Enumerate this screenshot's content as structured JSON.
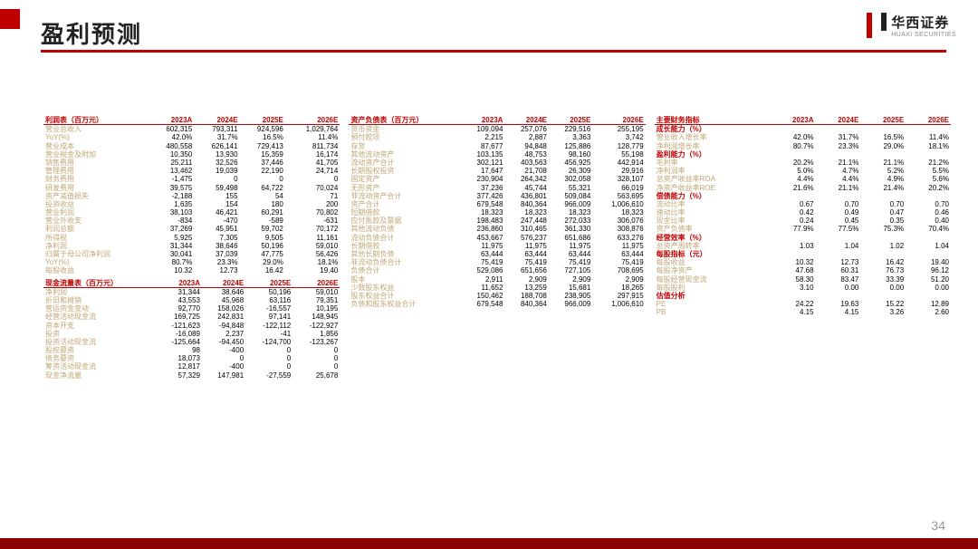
{
  "header": {
    "title": "盈利预测",
    "logo_cn": "华西证券",
    "logo_en": "HUAXI SECURITIES",
    "page_num": "34"
  },
  "cols": {
    "y1": "2023A",
    "y2": "2024E",
    "y3": "2025E",
    "y4": "2026E"
  },
  "t1_title": "利润表（百万元）",
  "t1": [
    {
      "l": "营业总收入",
      "a": "602,315",
      "b": "793,311",
      "c": "924,596",
      "d": "1,029,764"
    },
    {
      "l": "YoY(%)",
      "a": "42.0%",
      "b": "31.7%",
      "c": "16.5%",
      "d": "11.4%"
    },
    {
      "l": "营业成本",
      "a": "480,558",
      "b": "626,141",
      "c": "729,413",
      "d": "811,734"
    },
    {
      "l": "营业税金及附加",
      "a": "10,350",
      "b": "13,930",
      "c": "15,359",
      "d": "16,174"
    },
    {
      "l": "销售费用",
      "a": "25,211",
      "b": "32,526",
      "c": "37,446",
      "d": "41,705"
    },
    {
      "l": "管理费用",
      "a": "13,462",
      "b": "19,039",
      "c": "22,190",
      "d": "24,714"
    },
    {
      "l": "财务费用",
      "a": "-1,475",
      "b": "0",
      "c": "0",
      "d": "0"
    },
    {
      "l": "研发费用",
      "a": "39,575",
      "b": "59,498",
      "c": "64,722",
      "d": "70,024"
    },
    {
      "l": "资产减值损失",
      "a": "-2,188",
      "b": "155",
      "c": "54",
      "d": "71"
    },
    {
      "l": "投资收益",
      "a": "1,635",
      "b": "154",
      "c": "180",
      "d": "200"
    },
    {
      "l": "营业利润",
      "a": "38,103",
      "b": "46,421",
      "c": "60,291",
      "d": "70,802"
    },
    {
      "l": "营业外收支",
      "a": "-834",
      "b": "-470",
      "c": "-589",
      "d": "-631"
    },
    {
      "l": "利润总额",
      "a": "37,269",
      "b": "45,951",
      "c": "59,702",
      "d": "70,172"
    },
    {
      "l": "所得税",
      "a": "5,925",
      "b": "7,305",
      "c": "9,505",
      "d": "11,161"
    },
    {
      "l": "净利润",
      "a": "31,344",
      "b": "38,646",
      "c": "50,196",
      "d": "59,010"
    },
    {
      "l": "归属于母公司净利润",
      "a": "30,041",
      "b": "37,039",
      "c": "47,775",
      "d": "56,426"
    },
    {
      "l": "YoY(%)",
      "a": "80.7%",
      "b": "23.3%",
      "c": "29.0%",
      "d": "18.1%"
    },
    {
      "l": "每股收益",
      "a": "10.32",
      "b": "12.73",
      "c": "16.42",
      "d": "19.40"
    }
  ],
  "t2_title": "现金流量表（百万元）",
  "t2": [
    {
      "l": "净利润",
      "a": "31,344",
      "b": "38,646",
      "c": "50,196",
      "d": "59,010"
    },
    {
      "l": "折旧和摊销",
      "a": "43,553",
      "b": "45,968",
      "c": "63,116",
      "d": "79,351"
    },
    {
      "l": "营运资金变动",
      "a": "92,770",
      "b": "158,026",
      "c": "-16,557",
      "d": "10,195"
    },
    {
      "l": "经营活动现金流",
      "a": "169,725",
      "b": "242,831",
      "c": "97,141",
      "d": "148,945"
    },
    {
      "l": "资本开支",
      "a": "-121,623",
      "b": "-94,848",
      "c": "-122,112",
      "d": "-122,927"
    },
    {
      "l": "投资",
      "a": "-16,089",
      "b": "2,237",
      "c": "-41",
      "d": "1,856"
    },
    {
      "l": "投资活动现金流",
      "a": "-125,664",
      "b": "-94,450",
      "c": "-124,700",
      "d": "-123,267"
    },
    {
      "l": "股权募资",
      "a": "98",
      "b": "-400",
      "c": "0",
      "d": "0"
    },
    {
      "l": "债务募资",
      "a": "18,073",
      "b": "0",
      "c": "0",
      "d": "0"
    },
    {
      "l": "筹资活动现金流",
      "a": "12,817",
      "b": "-400",
      "c": "0",
      "d": "0"
    },
    {
      "l": "现金净流量",
      "a": "57,329",
      "b": "147,981",
      "c": "-27,559",
      "d": "25,678"
    }
  ],
  "t3_title": "资产负债表（百万元）",
  "t3": [
    {
      "l": "货币资金",
      "a": "109,094",
      "b": "257,076",
      "c": "229,516",
      "d": "255,195"
    },
    {
      "l": "预付款项",
      "a": "2,215",
      "b": "2,887",
      "c": "3,363",
      "d": "3,742"
    },
    {
      "l": "存货",
      "a": "87,677",
      "b": "94,848",
      "c": "125,886",
      "d": "128,779"
    },
    {
      "l": "其他流动资产",
      "a": "103,135",
      "b": "48,753",
      "c": "98,160",
      "d": "55,198"
    },
    {
      "l": "流动资产合计",
      "a": "302,121",
      "b": "403,563",
      "c": "456,925",
      "d": "442,914"
    },
    {
      "l": "长期股权投资",
      "a": "17,647",
      "b": "21,708",
      "c": "26,309",
      "d": "29,916"
    },
    {
      "l": "固定资产",
      "a": "230,904",
      "b": "264,342",
      "c": "302,058",
      "d": "328,107"
    },
    {
      "l": "无形资产",
      "a": "37,236",
      "b": "45,744",
      "c": "55,321",
      "d": "66,019"
    },
    {
      "l": "非流动资产合计",
      "a": "377,426",
      "b": "436,801",
      "c": "509,084",
      "d": "563,695"
    },
    {
      "l": "资产合计",
      "a": "679,548",
      "b": "840,364",
      "c": "966,009",
      "d": "1,006,610"
    },
    {
      "l": "短期借款",
      "a": "18,323",
      "b": "18,323",
      "c": "18,323",
      "d": "18,323"
    },
    {
      "l": "应付账款及票据",
      "a": "198,483",
      "b": "247,448",
      "c": "272,033",
      "d": "306,076"
    },
    {
      "l": "其他流动负债",
      "a": "236,860",
      "b": "310,465",
      "c": "361,330",
      "d": "308,876"
    },
    {
      "l": "流动负债合计",
      "a": "453,667",
      "b": "576,237",
      "c": "651,686",
      "d": "633,276"
    },
    {
      "l": "长期借款",
      "a": "11,975",
      "b": "11,975",
      "c": "11,975",
      "d": "11,975"
    },
    {
      "l": "其他长期负债",
      "a": "63,444",
      "b": "63,444",
      "c": "63,444",
      "d": "63,444"
    },
    {
      "l": "非流动负债合计",
      "a": "75,419",
      "b": "75,419",
      "c": "75,419",
      "d": "75,419"
    },
    {
      "l": "负债合计",
      "a": "529,086",
      "b": "651,656",
      "c": "727,105",
      "d": "708,695"
    },
    {
      "l": "股本",
      "a": "2,911",
      "b": "2,909",
      "c": "2,909",
      "d": "2,909"
    },
    {
      "l": "少数股东权益",
      "a": "11,652",
      "b": "13,259",
      "c": "15,681",
      "d": "18,265"
    },
    {
      "l": "股东权益合计",
      "a": "150,462",
      "b": "188,708",
      "c": "238,905",
      "d": "297,915"
    },
    {
      "l": "负债和股东权益合计",
      "a": "679,548",
      "b": "840,364",
      "c": "966,009",
      "d": "1,006,610"
    }
  ],
  "t4_title": "主要财务指标",
  "sections": [
    {
      "h": "成长能力（%）",
      "rows": [
        {
          "l": "营业收入增长率",
          "a": "42.0%",
          "b": "31.7%",
          "c": "16.5%",
          "d": "11.4%"
        },
        {
          "l": "净利润增长率",
          "a": "80.7%",
          "b": "23.3%",
          "c": "29.0%",
          "d": "18.1%"
        }
      ]
    },
    {
      "h": "盈利能力（%）",
      "rows": [
        {
          "l": "毛利率",
          "a": "20.2%",
          "b": "21.1%",
          "c": "21.1%",
          "d": "21.2%"
        },
        {
          "l": "净利润率",
          "a": "5.0%",
          "b": "4.7%",
          "c": "5.2%",
          "d": "5.5%"
        },
        {
          "l": "总资产收益率ROA",
          "a": "4.4%",
          "b": "4.4%",
          "c": "4.9%",
          "d": "5.6%"
        },
        {
          "l": "净资产收益率ROE",
          "a": "21.6%",
          "b": "21.1%",
          "c": "21.4%",
          "d": "20.2%"
        }
      ]
    },
    {
      "h": "偿债能力（%）",
      "rows": [
        {
          "l": "流动比率",
          "a": "0.67",
          "b": "0.70",
          "c": "0.70",
          "d": "0.70"
        },
        {
          "l": "速动比率",
          "a": "0.42",
          "b": "0.49",
          "c": "0.47",
          "d": "0.46"
        },
        {
          "l": "现金比率",
          "a": "0.24",
          "b": "0.45",
          "c": "0.35",
          "d": "0.40"
        },
        {
          "l": "资产负债率",
          "a": "77.9%",
          "b": "77.5%",
          "c": "75.3%",
          "d": "70.4%"
        }
      ]
    },
    {
      "h": "经营效率（%）",
      "rows": [
        {
          "l": "总资产周转率",
          "a": "1.03",
          "b": "1.04",
          "c": "1.02",
          "d": "1.04"
        }
      ]
    },
    {
      "h": "每股指标（元）",
      "rows": [
        {
          "l": "每股收益",
          "a": "10.32",
          "b": "12.73",
          "c": "16.42",
          "d": "19.40"
        },
        {
          "l": "每股净资产",
          "a": "47.68",
          "b": "60.31",
          "c": "76.73",
          "d": "96.12"
        },
        {
          "l": "每股经营现金流",
          "a": "58.30",
          "b": "83.47",
          "c": "33.39",
          "d": "51.20"
        },
        {
          "l": "每股股利",
          "a": "3.10",
          "b": "0.00",
          "c": "0.00",
          "d": "0.00"
        }
      ]
    },
    {
      "h": "估值分析",
      "rows": [
        {
          "l": "PE",
          "a": "24.22",
          "b": "19.63",
          "c": "15.22",
          "d": "12.89"
        },
        {
          "l": "PB",
          "a": "4.15",
          "b": "4.15",
          "c": "3.26",
          "d": "2.60"
        }
      ]
    }
  ]
}
